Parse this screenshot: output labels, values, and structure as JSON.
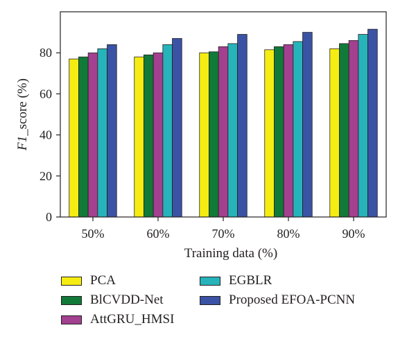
{
  "chart_data": {
    "type": "bar",
    "xlabel": "Training data (%)",
    "ylabel_italic": "F1",
    "ylabel_rest": "_score (%)",
    "ylim": [
      0,
      100
    ],
    "yticks": [
      0,
      20,
      40,
      60,
      80
    ],
    "grid": false,
    "legend_position": "bottom",
    "categories": [
      "50%",
      "60%",
      "70%",
      "80%",
      "90%"
    ],
    "series": [
      {
        "name": "PCA",
        "color": "#f5ed12",
        "values": [
          77,
          78,
          80,
          81.5,
          82
        ]
      },
      {
        "name": "BlCVDD-Net",
        "color": "#117a39",
        "values": [
          78,
          79,
          80.5,
          83,
          84.5
        ]
      },
      {
        "name": "AttGRU_HMSI",
        "color": "#a3408f",
        "values": [
          80,
          80,
          83,
          84,
          86
        ]
      },
      {
        "name": "EGBLR",
        "color": "#27b3ba",
        "values": [
          82,
          84,
          84.5,
          85.5,
          89
        ]
      },
      {
        "name": "Proposed EFOA-PCNN",
        "color": "#3a53a4",
        "values": [
          84,
          87,
          89,
          90,
          91.5
        ]
      }
    ]
  }
}
